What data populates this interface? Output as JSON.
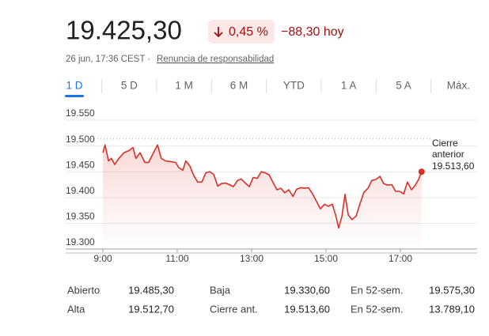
{
  "header": {
    "price": "19.425,30",
    "change_pct": "0,45 %",
    "change_abs": "−88,30 hoy",
    "timestamp": "26 jun, 17:36 CEST ·",
    "disclaimer": "Renuncia de responsabilidad"
  },
  "tabs": {
    "items": [
      "1 D",
      "5 D",
      "1 M",
      "6 M",
      "YTD",
      "1 A",
      "5 A",
      "Máx."
    ],
    "active": 0
  },
  "chart_data": {
    "type": "line",
    "color": "#d93025",
    "grid": true,
    "x": [
      9.0,
      9.06,
      9.15,
      9.23,
      9.32,
      9.43,
      9.57,
      9.7,
      9.81,
      9.89,
      10.0,
      10.13,
      10.23,
      10.34,
      10.47,
      10.57,
      10.68,
      10.79,
      10.96,
      11.04,
      11.15,
      11.23,
      11.34,
      11.45,
      11.55,
      11.66,
      11.77,
      11.87,
      11.98,
      12.09,
      12.19,
      12.3,
      12.4,
      12.51,
      12.62,
      12.72,
      12.83,
      12.94,
      13.04,
      13.15,
      13.26,
      13.36,
      13.47,
      13.57,
      13.68,
      13.79,
      13.89,
      14.0,
      14.11,
      14.21,
      14.32,
      14.43,
      14.53,
      14.64,
      14.74,
      14.85,
      14.96,
      15.06,
      15.17,
      15.26,
      15.34,
      15.43,
      15.51,
      15.6,
      15.7,
      15.81,
      15.91,
      16.02,
      16.13,
      16.23,
      16.34,
      16.45,
      16.55,
      16.66,
      16.77,
      16.87,
      16.98,
      17.09,
      17.19,
      17.3,
      17.4,
      17.49,
      17.57
    ],
    "values": [
      19487,
      19502,
      19471,
      19476,
      19464,
      19476,
      19487,
      19491,
      19497,
      19476,
      19487,
      19468,
      19468,
      19484,
      19502,
      19476,
      19471,
      19470,
      19468,
      19458,
      19453,
      19471,
      19461,
      19442,
      19430,
      19430,
      19448,
      19450,
      19445,
      19422,
      19427,
      19428,
      19425,
      19421,
      19433,
      19436,
      19428,
      19421,
      19439,
      19437,
      19450,
      19448,
      19444,
      19430,
      19415,
      19418,
      19409,
      19415,
      19402,
      19416,
      19419,
      19418,
      19419,
      19407,
      19393,
      19378,
      19387,
      19383,
      19387,
      19366,
      19341,
      19364,
      19406,
      19366,
      19357,
      19364,
      19387,
      19410,
      19418,
      19433,
      19435,
      19441,
      19427,
      19424,
      19425,
      19412,
      19412,
      19407,
      19430,
      19415,
      19424,
      19435,
      19450
    ],
    "xlim": [
      9,
      19
    ],
    "xticks": [
      {
        "value": 9,
        "label": "9:00"
      },
      {
        "value": 11,
        "label": "11:00"
      },
      {
        "value": 13,
        "label": "13:00"
      },
      {
        "value": 15,
        "label": "15:00"
      },
      {
        "value": 17,
        "label": "17:00"
      }
    ],
    "ylim": [
      19300,
      19570
    ],
    "yticks": [
      {
        "value": 19300,
        "label": "19.300"
      },
      {
        "value": 19350,
        "label": "19.350"
      },
      {
        "value": 19400,
        "label": "19.400"
      },
      {
        "value": 19450,
        "label": "19.450"
      },
      {
        "value": 19500,
        "label": "19.500"
      },
      {
        "value": 19550,
        "label": "19.550"
      }
    ],
    "reference_line": {
      "label": "Cierre anterior",
      "value": 19513.6,
      "value_label": "19.513,60"
    }
  },
  "stats": {
    "rows": [
      [
        "Abierto",
        "19.485,30",
        "Baja",
        "19.330,60",
        "En 52-sem.",
        "19.575,30"
      ],
      [
        "Alta",
        "19.512,70",
        "Cierre ant.",
        "19.513,60",
        "En 52-sem.",
        "13.789,10"
      ]
    ]
  }
}
